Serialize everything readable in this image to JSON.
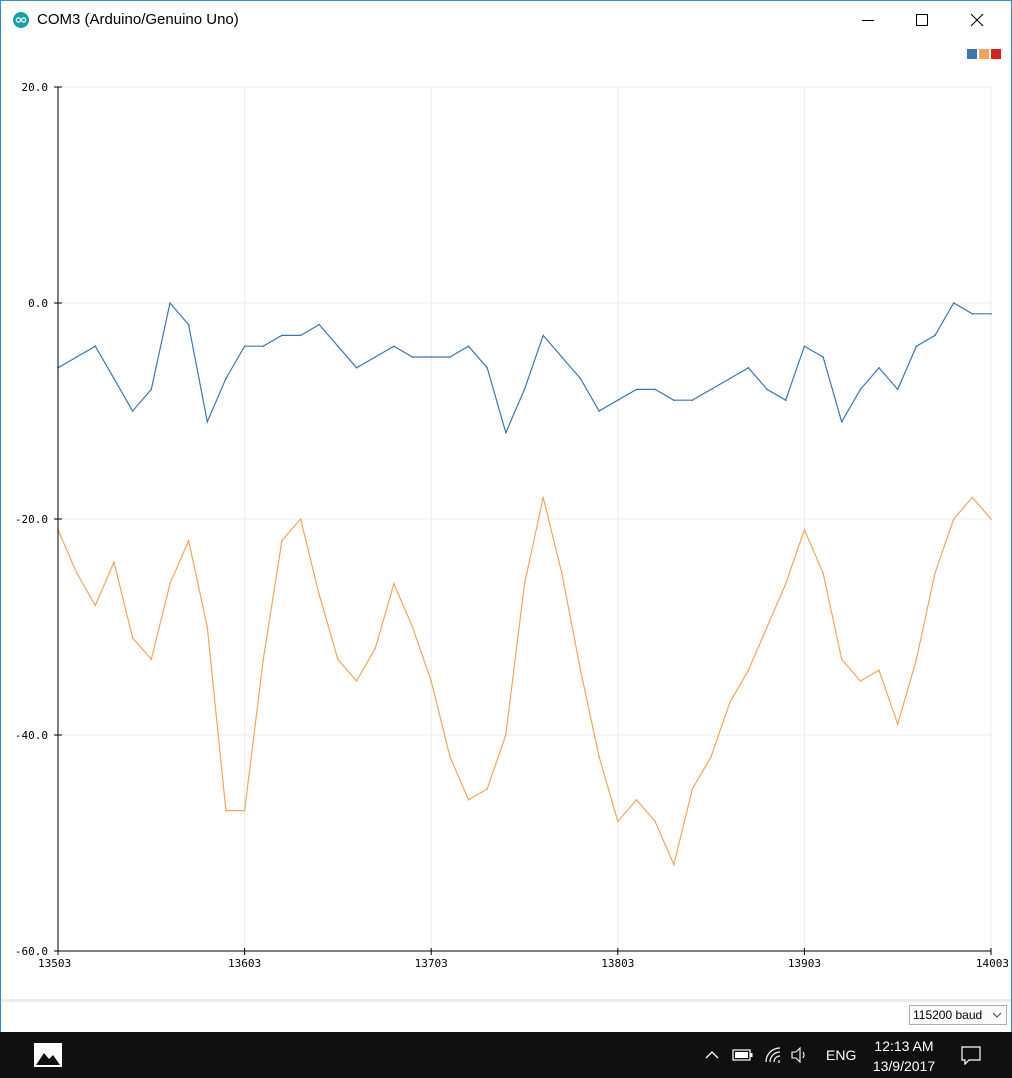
{
  "window": {
    "title": "COM3 (Arduino/Genuino Uno)"
  },
  "legend": {
    "swatches": [
      "#3a78b4",
      "#f5a55a",
      "#d62020"
    ]
  },
  "toolbar": {
    "baud_rate": "115200 baud"
  },
  "taskbar": {
    "language": "ENG",
    "time": "12:13 AM",
    "date": "13/9/2017"
  },
  "chart_data": {
    "type": "line",
    "grid": true,
    "ylim": [
      -60,
      20
    ],
    "xlim": [
      13503,
      14003
    ],
    "xticks": [
      "13503",
      "13603",
      "13703",
      "13803",
      "13903",
      "14003"
    ],
    "yticks": [
      "20.0",
      "0.0",
      "-20.0",
      "-40.0",
      "-60.0"
    ],
    "series": [
      {
        "color": "#3a78b4",
        "x": [
          13503,
          13513,
          13523,
          13533,
          13543,
          13553,
          13563,
          13573,
          13583,
          13593,
          13603,
          13613,
          13623,
          13633,
          13643,
          13653,
          13663,
          13673,
          13683,
          13693,
          13703,
          13713,
          13723,
          13733,
          13743,
          13753,
          13763,
          13773,
          13783,
          13793,
          13803,
          13813,
          13823,
          13833,
          13843,
          13853,
          13863,
          13873,
          13883,
          13893,
          13903,
          13913,
          13923,
          13933,
          13943,
          13953,
          13963,
          13973,
          13983,
          13993,
          14003
        ],
        "values": [
          -6,
          -5,
          -4,
          -7,
          -10,
          -8,
          0,
          -2,
          -11,
          -7,
          -4,
          -4,
          -3,
          -3,
          -2,
          -4,
          -6,
          -5,
          -4,
          -5,
          -5,
          -5,
          -4,
          -6,
          -12,
          -8,
          -3,
          -5,
          -7,
          -10,
          -9,
          -8,
          -8,
          -9,
          -9,
          -8,
          -7,
          -6,
          -8,
          -9,
          -4,
          -5,
          -11,
          -8,
          -6,
          -8,
          -4,
          -3,
          0,
          -1,
          -1
        ]
      },
      {
        "color": "#f5a55a",
        "x": [
          13503,
          13513,
          13523,
          13533,
          13543,
          13553,
          13563,
          13573,
          13583,
          13593,
          13603,
          13613,
          13623,
          13633,
          13643,
          13653,
          13663,
          13673,
          13683,
          13693,
          13703,
          13713,
          13723,
          13733,
          13743,
          13753,
          13763,
          13773,
          13783,
          13793,
          13803,
          13813,
          13823,
          13833,
          13843,
          13853,
          13863,
          13873,
          13883,
          13893,
          13903,
          13913,
          13923,
          13933,
          13943,
          13953,
          13963,
          13973,
          13983,
          13993,
          14003
        ],
        "values": [
          -21,
          -25,
          -28,
          -24,
          -31,
          -33,
          -26,
          -22,
          -30,
          -47,
          -47,
          -33,
          -22,
          -20,
          -27,
          -33,
          -35,
          -32,
          -26,
          -30,
          -35,
          -42,
          -46,
          -45,
          -40,
          -26,
          -18,
          -25,
          -34,
          -42,
          -48,
          -46,
          -48,
          -52,
          -45,
          -42,
          -37,
          -34,
          -30,
          -26,
          -21,
          -25,
          -33,
          -35,
          -34,
          -39,
          -33,
          -25,
          -20,
          -18,
          -20
        ]
      }
    ]
  }
}
